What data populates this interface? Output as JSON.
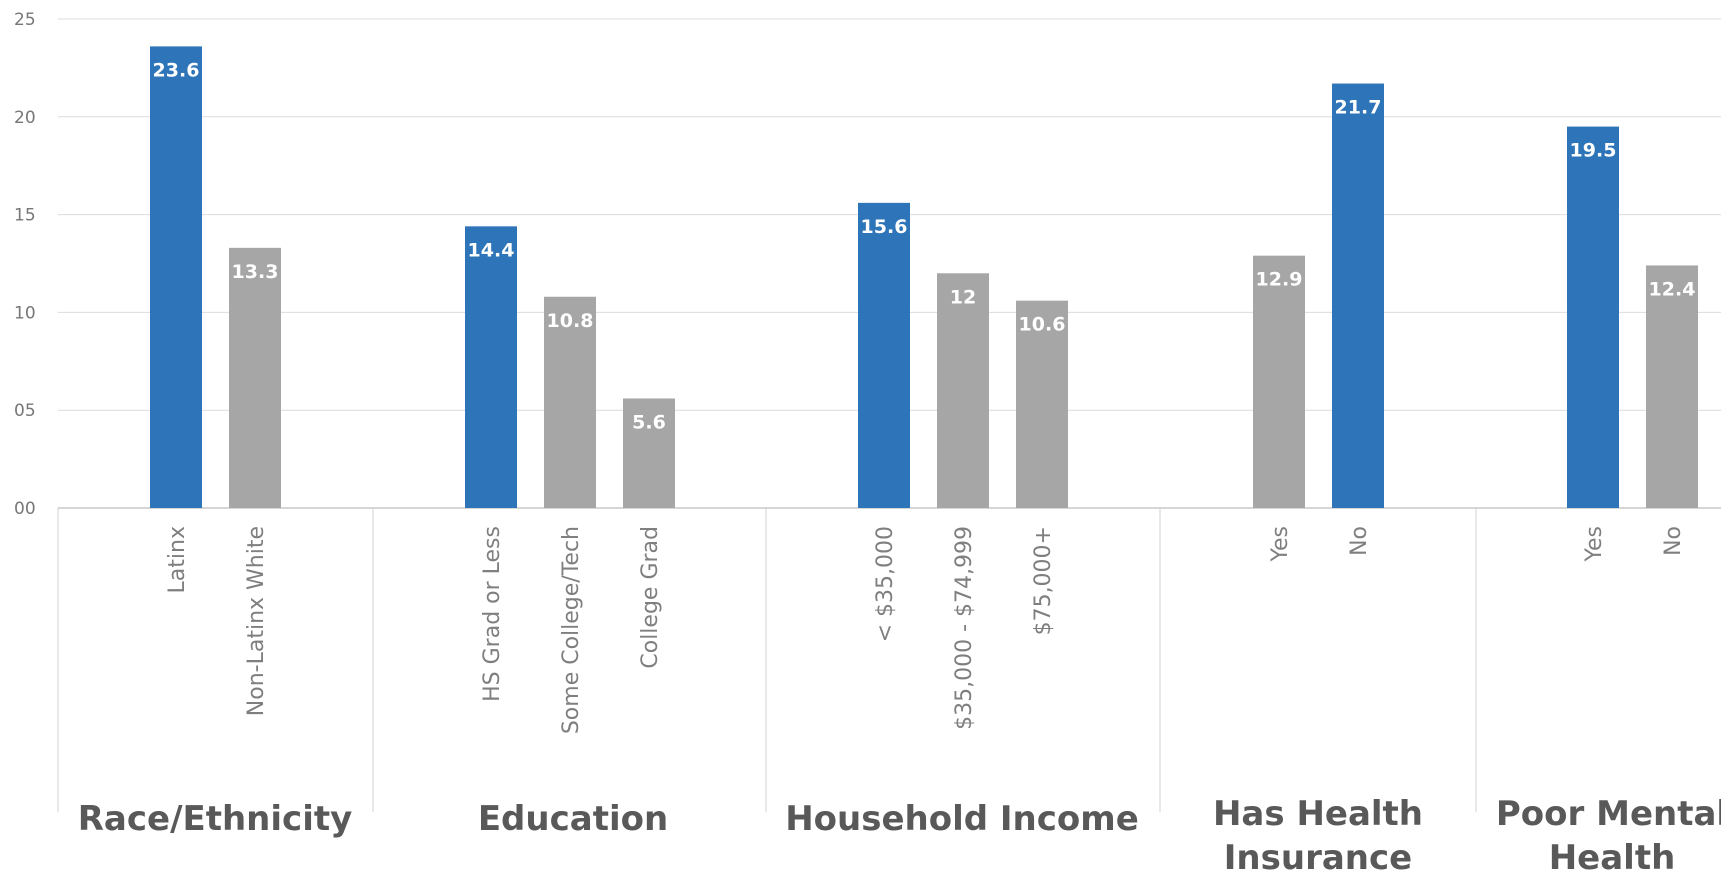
{
  "chart_data": {
    "type": "bar",
    "ylim": [
      0,
      25
    ],
    "yticks": [
      "00",
      "05",
      "10",
      "15",
      "20",
      "25"
    ],
    "grid": true,
    "colors": {
      "highlight": "#2e74b8",
      "other": "#a6a6a6"
    },
    "groups": [
      {
        "label_lines": [
          "Race/Ethnicity"
        ],
        "bars": [
          {
            "category": "Latinx",
            "value": 23.6,
            "label": "23.6",
            "highlight": true
          },
          {
            "category": "Non-Latinx White",
            "value": 13.3,
            "label": "13.3",
            "highlight": false
          }
        ]
      },
      {
        "label_lines": [
          "Education"
        ],
        "bars": [
          {
            "category": "HS Grad or Less",
            "value": 14.4,
            "label": "14.4",
            "highlight": true
          },
          {
            "category": "Some College/Tech",
            "value": 10.8,
            "label": "10.8",
            "highlight": false
          },
          {
            "category": "College Grad",
            "value": 5.6,
            "label": "5.6",
            "highlight": false
          }
        ]
      },
      {
        "label_lines": [
          "Household Income"
        ],
        "bars": [
          {
            "category": "< $35,000",
            "value": 15.6,
            "label": "15.6",
            "highlight": true
          },
          {
            "category": "$35,000 - $74,999",
            "value": 12,
            "label": "12",
            "highlight": false
          },
          {
            "category": "$75,000+",
            "value": 10.6,
            "label": "10.6",
            "highlight": false
          }
        ]
      },
      {
        "label_lines": [
          "Has Health",
          "Insurance"
        ],
        "bars": [
          {
            "category": "Yes",
            "value": 12.9,
            "label": "12.9",
            "highlight": false
          },
          {
            "category": "No",
            "value": 21.7,
            "label": "21.7",
            "highlight": true
          }
        ]
      },
      {
        "label_lines": [
          "Poor Mental",
          "Health"
        ],
        "bars": [
          {
            "category": "Yes",
            "value": 19.5,
            "label": "19.5",
            "highlight": true
          },
          {
            "category": "No",
            "value": 12.4,
            "label": "12.4",
            "highlight": false
          }
        ]
      }
    ]
  }
}
